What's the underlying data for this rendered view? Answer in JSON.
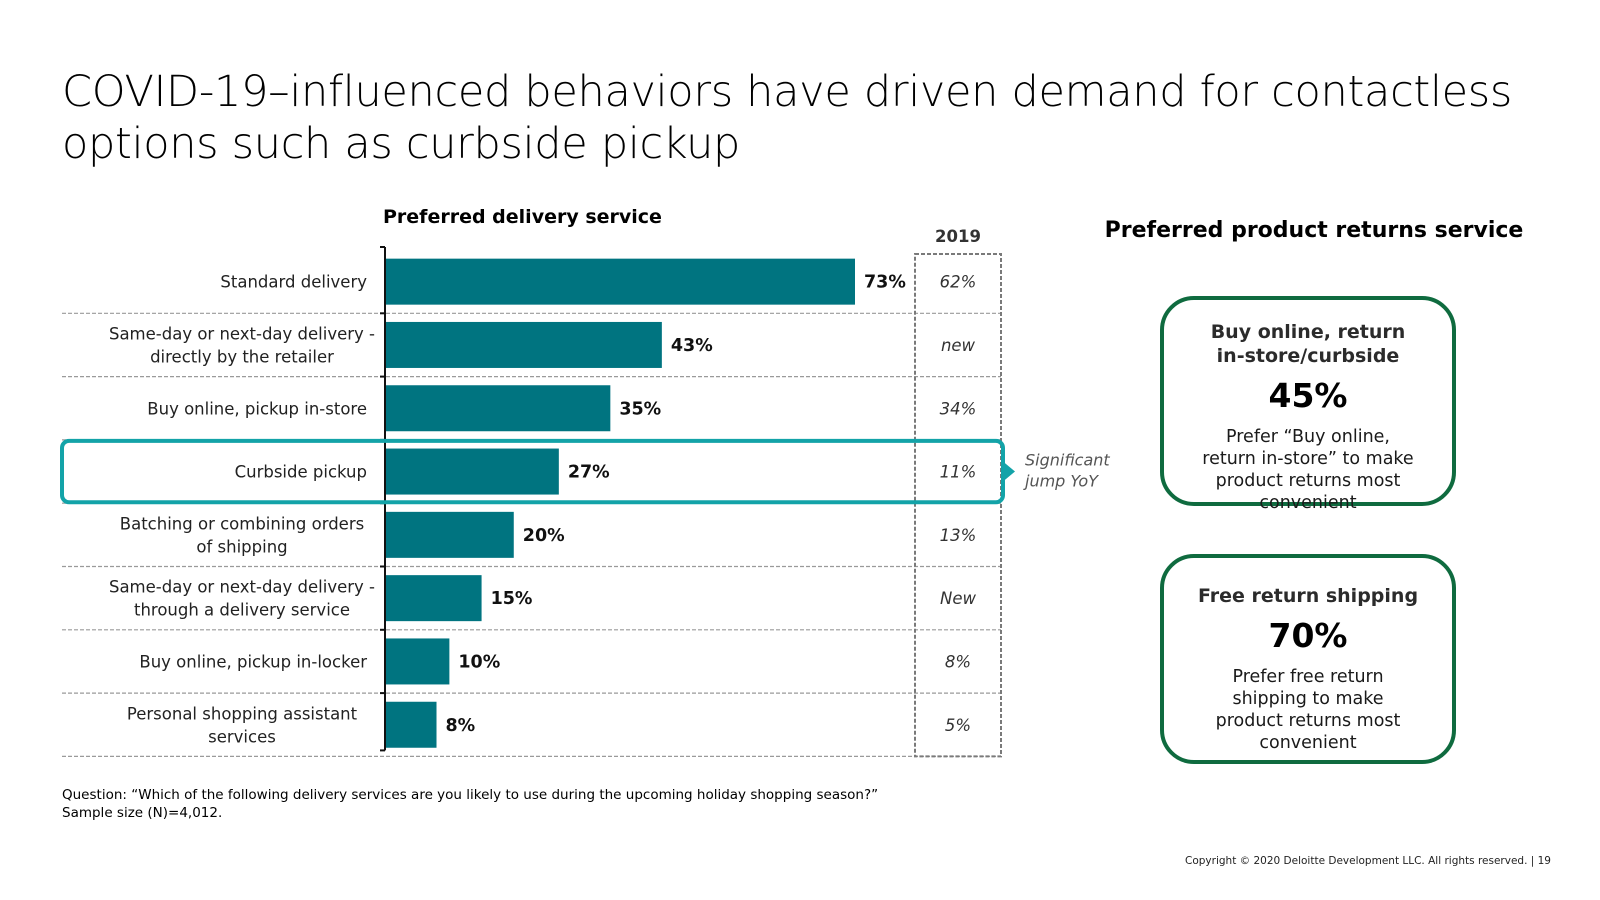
{
  "title": "COVID-19–influenced behaviors have driven demand for contactless options such as curbside pickup",
  "chart_data": {
    "type": "bar",
    "orientation": "horizontal",
    "title": "Preferred delivery service",
    "categories": [
      "Standard delivery",
      "Same-day or next-day delivery - directly by the retailer",
      "Buy online, pickup in-store",
      "Curbside pickup",
      "Batching or combining orders of shipping",
      "Same-day or next-day delivery - through a delivery service",
      "Buy online, pickup in-locker",
      "Personal shopping assistant services"
    ],
    "category_lines": [
      [
        "Standard delivery"
      ],
      [
        "Same-day or next-day delivery -",
        "directly by the retailer"
      ],
      [
        "Buy online, pickup in-store"
      ],
      [
        "Curbside pickup"
      ],
      [
        "Batching or combining orders",
        "of shipping"
      ],
      [
        "Same-day or next-day delivery -",
        "through a delivery service"
      ],
      [
        "Buy online, pickup in-locker"
      ],
      [
        "Personal shopping assistant",
        "services"
      ]
    ],
    "values": [
      73,
      43,
      35,
      27,
      20,
      15,
      10,
      8
    ],
    "value_labels": [
      "73%",
      "43%",
      "35%",
      "27%",
      "20%",
      "15%",
      "10%",
      "8%"
    ],
    "xlim": [
      0,
      100
    ],
    "comparison_column": {
      "header": "2019",
      "values": [
        "62%",
        "new",
        "34%",
        "11%",
        "13%",
        "New",
        "8%",
        "5%"
      ]
    },
    "highlight": {
      "category": "Curbside pickup",
      "note_lines": [
        "Significant",
        "jump YoY"
      ]
    },
    "bar_color": "#007480",
    "highlight_color": "#13a3a8",
    "gridlines": "dashed"
  },
  "footnote": {
    "question": "Question: “Which of the following delivery services are you likely to use during the upcoming holiday shopping season?”",
    "sample": "Sample size (N)=4,012."
  },
  "returns": {
    "heading": "Preferred product returns service",
    "cards": [
      {
        "title": "Buy online, return in-store/curbside",
        "value": "45%",
        "description": "Prefer “Buy online, return in-store” to make product returns most convenient"
      },
      {
        "title": "Free return shipping",
        "value": "70%",
        "description": "Prefer free return shipping to make product returns most convenient"
      }
    ],
    "border_color": "#0f6b3f"
  },
  "copyright": "Copyright © 2020 Deloitte Development LLC. All rights reserved.   |   19"
}
